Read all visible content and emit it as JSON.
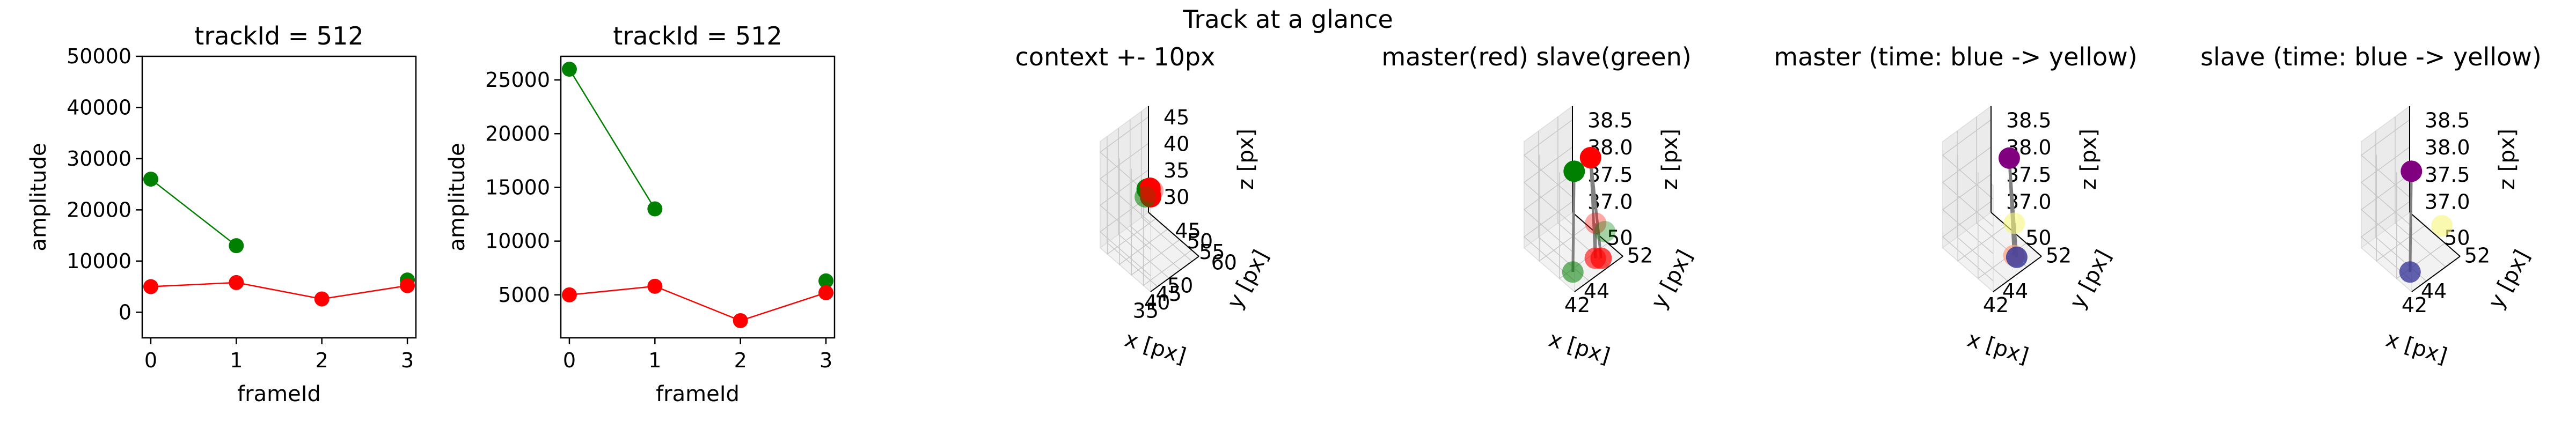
{
  "figure": {
    "suptitle": "Track at a glance"
  },
  "chart_data": [
    {
      "type": "line",
      "title": "trackId = 512",
      "xlabel": "frameId",
      "ylabel": "amplitude",
      "xlim": [
        -0.1,
        3.1
      ],
      "ylim": [
        -5000,
        50000
      ],
      "xticks": [
        0,
        1,
        2,
        3
      ],
      "yticks": [
        0,
        10000,
        20000,
        30000,
        40000,
        50000
      ],
      "xtick_labels": [
        "0",
        "1",
        "2",
        "3"
      ],
      "ytick_labels": [
        "0",
        "10000",
        "20000",
        "30000",
        "40000",
        "50000"
      ],
      "series": [
        {
          "color": "#008000",
          "x": [
            0,
            1
          ],
          "y": [
            26000,
            13000
          ],
          "extra_points": [
            [
              3,
              6300
            ]
          ]
        },
        {
          "color": "#ff0000",
          "x": [
            0,
            1,
            2,
            3
          ],
          "y": [
            5000,
            5800,
            2600,
            5200
          ]
        }
      ]
    },
    {
      "type": "line",
      "title": "trackId = 512",
      "xlabel": "frameId",
      "ylabel": "amplitude",
      "xlim": [
        -0.1,
        3.1
      ],
      "ylim": [
        1000,
        27200
      ],
      "xticks": [
        0,
        1,
        2,
        3
      ],
      "yticks": [
        5000,
        10000,
        15000,
        20000,
        25000
      ],
      "xtick_labels": [
        "0",
        "1",
        "2",
        "3"
      ],
      "ytick_labels": [
        "5000",
        "10000",
        "15000",
        "20000",
        "25000"
      ],
      "series": [
        {
          "color": "#008000",
          "x": [
            0,
            1
          ],
          "y": [
            26000,
            13000
          ],
          "extra_points": [
            [
              3,
              6300
            ]
          ]
        },
        {
          "color": "#ff0000",
          "x": [
            0,
            1,
            2,
            3
          ],
          "y": [
            5000,
            5800,
            2600,
            5200
          ]
        }
      ]
    },
    {
      "type": "scatter",
      "projection": "3d",
      "title": "context +- 10px",
      "xlabel": "x [px]",
      "ylabel": "y [px]",
      "zlabel": "z [px]",
      "xlim": [
        32,
        53
      ],
      "ylim": [
        42,
        63
      ],
      "zlim": [
        27,
        47
      ],
      "xticks": [
        35,
        40,
        45,
        50
      ],
      "yticks": [
        45,
        50,
        55,
        60
      ],
      "zticks": [
        30,
        35,
        40,
        45
      ],
      "xtick_labels": [
        "35",
        "40",
        "45",
        "50"
      ],
      "ytick_labels": [
        "45",
        "50",
        "55",
        "60"
      ],
      "ztick_labels": [
        "30",
        "35",
        "40",
        "45"
      ],
      "points": [
        {
          "x": 42,
          "y": 52,
          "z": 38.8,
          "color": "#008000",
          "alpha": 1.0
        },
        {
          "x": 43.2,
          "y": 52,
          "z": 38.6,
          "color": "#ff0000",
          "alpha": 1.0
        },
        {
          "x": 43.5,
          "y": 52,
          "z": 36.9,
          "color": "#ff0000",
          "alpha": 1.0
        },
        {
          "x": 42.2,
          "y": 51,
          "z": 36.9,
          "color": "#008000",
          "alpha": 0.55
        },
        {
          "x": 44.5,
          "y": 51,
          "z": 37.0,
          "color": "#ff0000",
          "alpha": 0.4
        },
        {
          "x": 45.5,
          "y": 51,
          "z": 37.0,
          "color": "#ff0000",
          "alpha": 0.35
        }
      ],
      "segments": [
        [
          0,
          3
        ],
        [
          1,
          2
        ],
        [
          2,
          4
        ]
      ]
    },
    {
      "type": "scatter",
      "projection": "3d",
      "title": "master(red) slave(green)",
      "xlabel": "x [px]",
      "ylabel": "y [px]",
      "zlabel": "z [px]",
      "xlim": [
        40.5,
        45.5
      ],
      "ylim": [
        48.5,
        53.5
      ],
      "zlim": [
        36.8,
        38.75
      ],
      "xticks": [
        42,
        44
      ],
      "yticks": [
        50,
        52
      ],
      "zticks": [
        37.0,
        37.5,
        38.0,
        38.5
      ],
      "xtick_labels": [
        "42",
        "44"
      ],
      "ytick_labels": [
        "50",
        "52"
      ],
      "ztick_labels": [
        "37.0",
        "37.5",
        "38.0",
        "38.5"
      ],
      "points": [
        {
          "x": 41.4,
          "y": 52.6,
          "z": 38.75,
          "color": "#008000",
          "alpha": 1.0
        },
        {
          "x": 43.2,
          "y": 52.5,
          "z": 38.75,
          "color": "#ff0000",
          "alpha": 1.0
        },
        {
          "x": 42.2,
          "y": 51.7,
          "z": 36.65,
          "color": "#008000",
          "alpha": 0.55
        },
        {
          "x": 44.0,
          "y": 52.2,
          "z": 36.75,
          "color": "#ff0000",
          "alpha": 0.6
        },
        {
          "x": 44.5,
          "y": 52.3,
          "z": 36.7,
          "color": "#ff0000",
          "alpha": 0.7
        },
        {
          "x": 45.4,
          "y": 50.9,
          "z": 37.0,
          "color": "#ff0000",
          "alpha": 0.35
        },
        {
          "x": 45.2,
          "y": 52.0,
          "z": 37.05,
          "color": "#008000",
          "alpha": 0.35
        }
      ],
      "segments": [
        [
          0,
          2
        ],
        [
          1,
          3
        ],
        [
          1,
          4
        ],
        [
          3,
          5
        ]
      ]
    },
    {
      "type": "scatter",
      "projection": "3d",
      "title": "master (time: blue -> yellow)",
      "xlabel": "x [px]",
      "ylabel": "y [px]",
      "zlabel": "z [px]",
      "xlim": [
        40.5,
        45.5
      ],
      "ylim": [
        48.5,
        53.5
      ],
      "zlim": [
        36.8,
        38.75
      ],
      "xticks": [
        42,
        44
      ],
      "yticks": [
        50,
        52
      ],
      "zticks": [
        37.0,
        37.5,
        38.0,
        38.5
      ],
      "xtick_labels": [
        "42",
        "44"
      ],
      "ytick_labels": [
        "50",
        "52"
      ],
      "ztick_labels": [
        "37.0",
        "37.5",
        "38.0",
        "38.5"
      ],
      "points": [
        {
          "x": 43.0,
          "y": 52.7,
          "z": 38.8,
          "color": "#800080",
          "alpha": 1.0
        },
        {
          "x": 44.0,
          "y": 52.2,
          "z": 36.8,
          "color": "#ffa07a",
          "alpha": 0.7
        },
        {
          "x": 44.4,
          "y": 52.1,
          "z": 36.7,
          "color": "#3a3a9a",
          "alpha": 0.85
        },
        {
          "x": 45.4,
          "y": 50.9,
          "z": 37.0,
          "color": "#f5f57a",
          "alpha": 0.6
        }
      ],
      "segments": [
        [
          0,
          1
        ],
        [
          0,
          2
        ],
        [
          2,
          3
        ]
      ]
    },
    {
      "type": "scatter",
      "projection": "3d",
      "title": "slave (time: blue -> yellow)",
      "xlabel": "x [px]",
      "ylabel": "y [px]",
      "zlabel": "z [px]",
      "xlim": [
        40.5,
        45.5
      ],
      "ylim": [
        48.5,
        53.5
      ],
      "zlim": [
        36.8,
        38.75
      ],
      "xticks": [
        42,
        44
      ],
      "yticks": [
        50,
        52
      ],
      "zticks": [
        37.0,
        37.5,
        38.0,
        38.5
      ],
      "xtick_labels": [
        "42",
        "44"
      ],
      "ytick_labels": [
        "50",
        "52"
      ],
      "ztick_labels": [
        "37.0",
        "37.5",
        "38.0",
        "38.5"
      ],
      "points": [
        {
          "x": 41.4,
          "y": 52.6,
          "z": 38.75,
          "color": "#800080",
          "alpha": 1.0
        },
        {
          "x": 42.2,
          "y": 51.7,
          "z": 36.65,
          "color": "#3a3a9a",
          "alpha": 0.8
        },
        {
          "x": 45.4,
          "y": 51.8,
          "z": 37.1,
          "color": "#f5f57a",
          "alpha": 0.6
        }
      ],
      "segments": [
        [
          0,
          1
        ]
      ]
    }
  ]
}
